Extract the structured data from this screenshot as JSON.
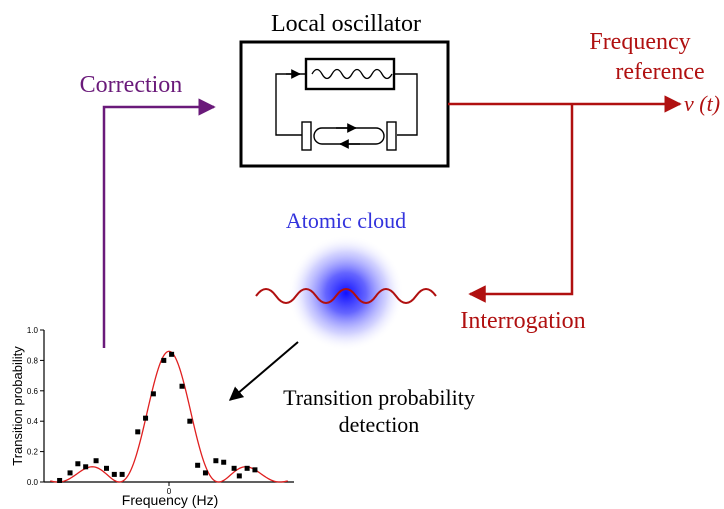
{
  "labels": {
    "local_oscillator": "Local oscillator",
    "correction": "Correction",
    "frequency_reference_line1": "Frequency",
    "frequency_reference_line2": "reference",
    "nu_symbol": "ν",
    "nu_arg": "(t)",
    "atomic_cloud": "Atomic cloud",
    "interrogation": "Interrogation",
    "detection_line1": "Transition probability",
    "detection_line2": "detection"
  },
  "colors": {
    "correction": "#6a1a7a",
    "reference": "#b01010",
    "cloud": "#2020ff",
    "atomic_label": "#3333dd",
    "fit_curve": "#e02020",
    "black": "#000000"
  },
  "chart_data": {
    "type": "scatter",
    "xlabel": "Frequency (Hz)",
    "ylabel": "Transition probability",
    "xlim": [
      -2.4,
      2.4
    ],
    "ylim": [
      0,
      1.0
    ],
    "x_ticks": [
      "0"
    ],
    "y_ticks": [
      "0.0",
      "0.2",
      "0.4",
      "0.6",
      "0.8",
      "1.0"
    ],
    "points": [
      {
        "x": -2.1,
        "y": 0.01
      },
      {
        "x": -1.9,
        "y": 0.06
      },
      {
        "x": -1.75,
        "y": 0.12
      },
      {
        "x": -1.6,
        "y": 0.1
      },
      {
        "x": -1.4,
        "y": 0.14
      },
      {
        "x": -1.2,
        "y": 0.09
      },
      {
        "x": -1.05,
        "y": 0.05
      },
      {
        "x": -0.9,
        "y": 0.05
      },
      {
        "x": -0.6,
        "y": 0.33
      },
      {
        "x": -0.45,
        "y": 0.42
      },
      {
        "x": -0.3,
        "y": 0.58
      },
      {
        "x": -0.1,
        "y": 0.8
      },
      {
        "x": 0.05,
        "y": 0.84
      },
      {
        "x": 0.25,
        "y": 0.63
      },
      {
        "x": 0.4,
        "y": 0.4
      },
      {
        "x": 0.55,
        "y": 0.11
      },
      {
        "x": 0.7,
        "y": 0.06
      },
      {
        "x": 0.9,
        "y": 0.14
      },
      {
        "x": 1.05,
        "y": 0.13
      },
      {
        "x": 1.25,
        "y": 0.09
      },
      {
        "x": 1.35,
        "y": 0.04
      },
      {
        "x": 1.5,
        "y": 0.09
      },
      {
        "x": 1.65,
        "y": 0.08
      }
    ],
    "fit": {
      "type": "rabi",
      "peak": 0.86,
      "center": 0.0,
      "rabi_width": 0.55
    }
  }
}
